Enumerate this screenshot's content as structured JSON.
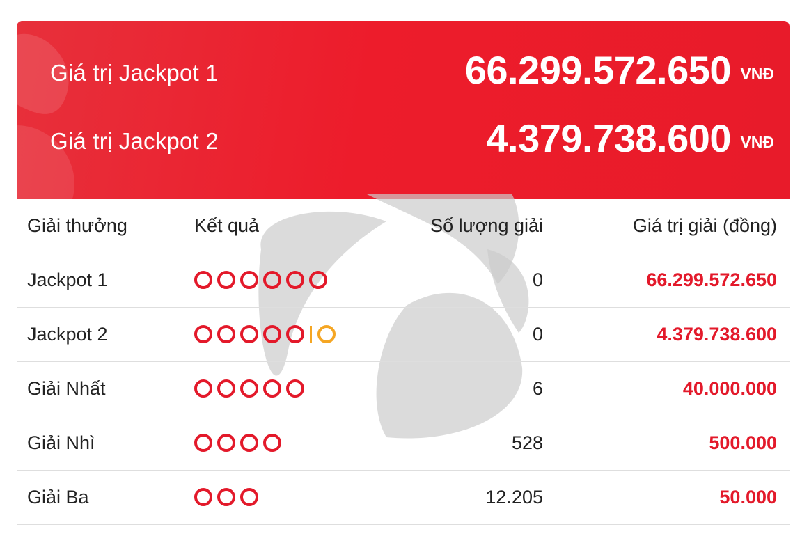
{
  "jackpots": [
    {
      "label": "Giá trị Jackpot 1",
      "value": "66.299.572.650",
      "unit": "VNĐ"
    },
    {
      "label": "Giá trị Jackpot 2",
      "value": "4.379.738.600",
      "unit": "VNĐ"
    }
  ],
  "table": {
    "headers": {
      "prize": "Giải thưởng",
      "result": "Kết quả",
      "count": "Số lượng giải",
      "value": "Giá trị giải (đồng)"
    },
    "rows": [
      {
        "prize": "Jackpot 1",
        "balls": 6,
        "bonus_balls": 0,
        "count": "0",
        "value": "66.299.572.650"
      },
      {
        "prize": "Jackpot 2",
        "balls": 5,
        "bonus_balls": 1,
        "count": "0",
        "value": "4.379.738.600"
      },
      {
        "prize": "Giải Nhất",
        "balls": 5,
        "bonus_balls": 0,
        "count": "6",
        "value": "40.000.000"
      },
      {
        "prize": "Giải Nhì",
        "balls": 4,
        "bonus_balls": 0,
        "count": "528",
        "value": "500.000"
      },
      {
        "prize": "Giải Ba",
        "balls": 3,
        "bonus_balls": 0,
        "count": "12.205",
        "value": "50.000"
      }
    ]
  },
  "colors": {
    "panel": "#ed1c2b",
    "ball": "#e3192a",
    "bonus_ball": "#f5a623",
    "prize_text": "#e3192a"
  },
  "icons": {
    "background": "clover-logo-watermark"
  }
}
